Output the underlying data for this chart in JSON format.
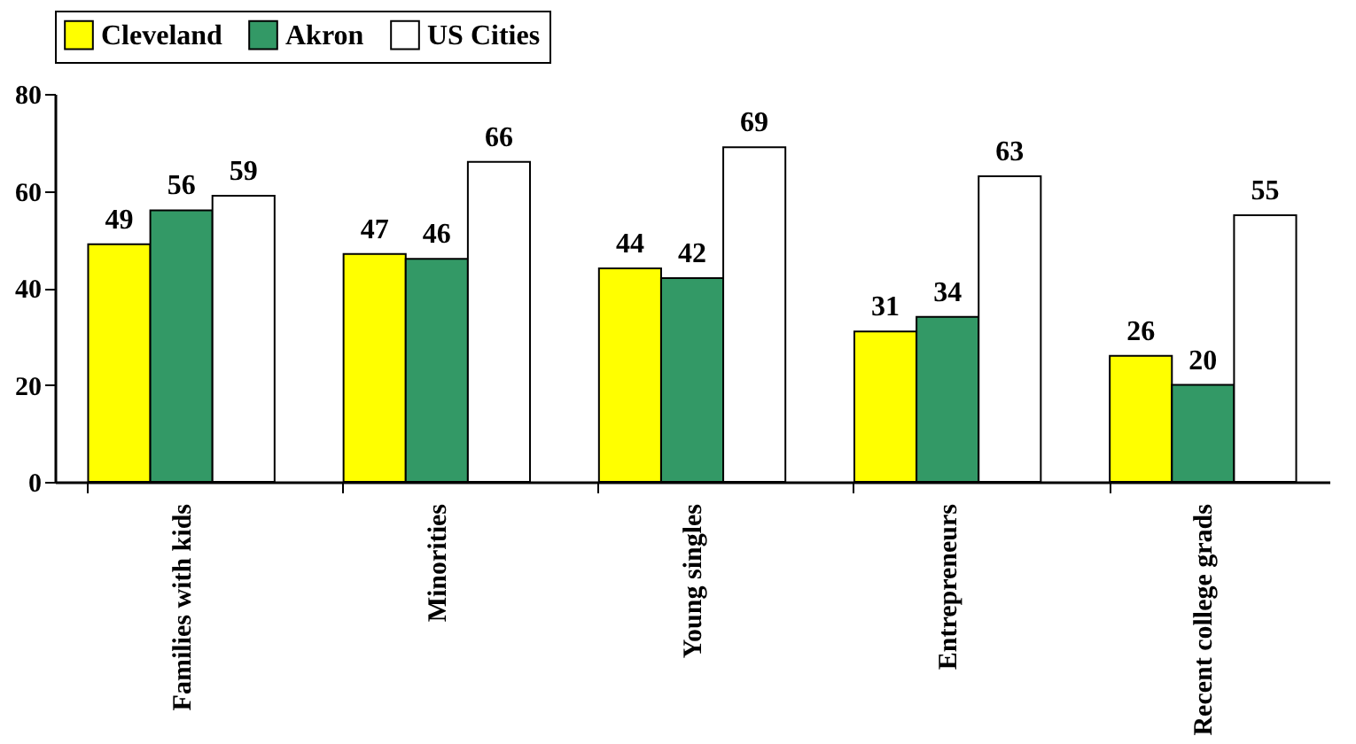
{
  "chart_data": {
    "type": "bar",
    "categories": [
      "Families with kids",
      "Minorities",
      "Young singles",
      "Entrepreneurs",
      "Recent college grads"
    ],
    "series": [
      {
        "name": "Cleveland",
        "color": "#ffff00",
        "values": [
          49,
          47,
          44,
          31,
          26
        ]
      },
      {
        "name": "Akron",
        "color": "#339966",
        "values": [
          56,
          46,
          42,
          34,
          20
        ]
      },
      {
        "name": "US Cities",
        "color": "#ffffff",
        "values": [
          59,
          66,
          69,
          63,
          55
        ]
      }
    ],
    "ylim": [
      0,
      80
    ],
    "yticks": [
      0,
      20,
      40,
      60,
      80
    ],
    "grid": false,
    "legend": "top",
    "data_labels": true
  }
}
